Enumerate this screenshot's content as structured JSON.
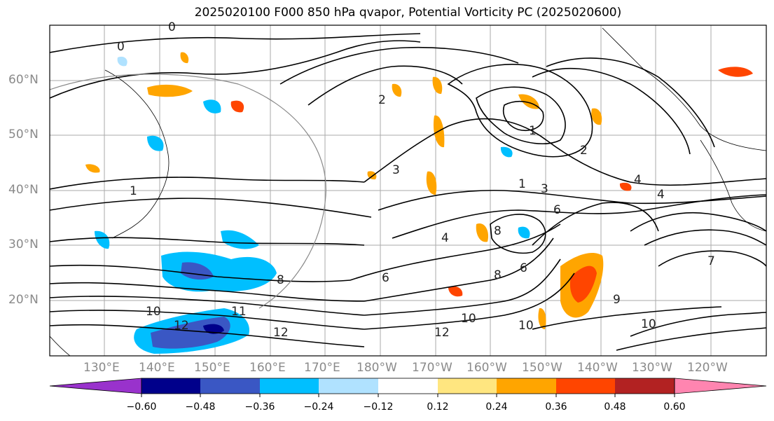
{
  "title": "2025020100 F000 850 hPa qvapor, Potential Vorticity PC (2025020600)",
  "lat_labels": [
    "60°N",
    "50°N",
    "40°N",
    "30°N",
    "20°N"
  ],
  "lon_labels": [
    "130°E",
    "140°E",
    "150°E",
    "160°E",
    "170°E",
    "180°W",
    "170°W",
    "160°W",
    "150°W",
    "140°W",
    "130°W",
    "120°W"
  ],
  "colorbar": {
    "ticks": [
      "−0.60",
      "−0.48",
      "−0.36",
      "−0.24",
      "−0.12",
      "0.12",
      "0.24",
      "0.36",
      "0.48",
      "0.60"
    ],
    "colors": [
      "#9932cc",
      "#00008b",
      "#3a57c4",
      "#00bfff",
      "#b0e2ff",
      "#ffffff",
      "#ffe680",
      "#ffa500",
      "#ff4500",
      "#b22222",
      "#ff85b0"
    ]
  },
  "contour_labels": [
    "0",
    "1",
    "2",
    "3",
    "4",
    "6",
    "7",
    "8",
    "10",
    "11",
    "12"
  ]
}
